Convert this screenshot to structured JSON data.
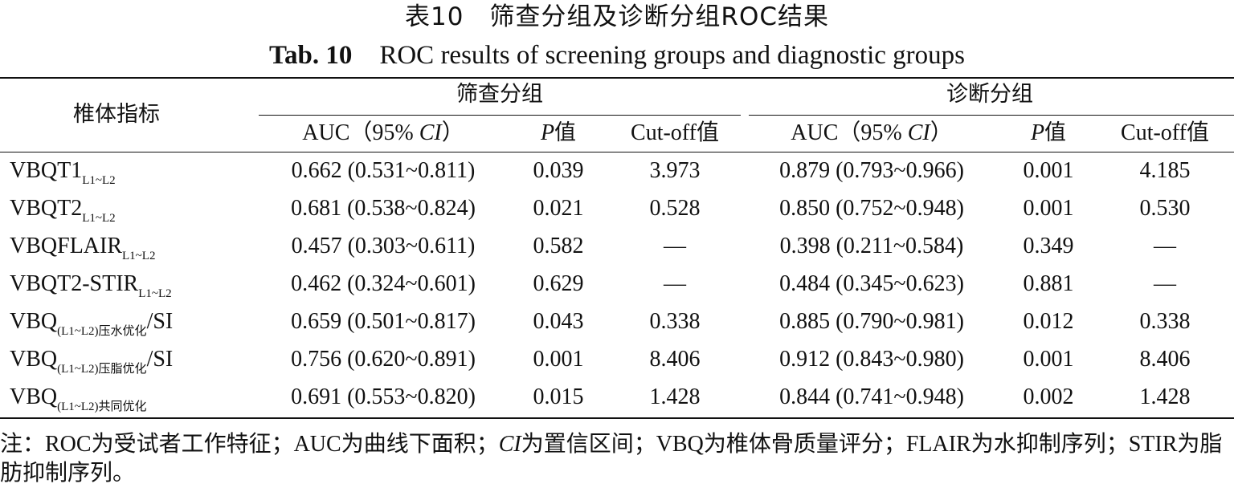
{
  "title": {
    "cn": "表10　筛查分组及诊断分组ROC结果",
    "en_number": "Tab. 10",
    "en_text": "ROC results of screening groups and diagnostic groups"
  },
  "header": {
    "row_label": "椎体指标",
    "group_screening": "筛查分组",
    "group_diagnostic": "诊断分组",
    "auc_prefix": "AUC（95% ",
    "auc_ci": "CI",
    "auc_suffix": "）",
    "p_italic": "P",
    "p_suffix": "值",
    "cutoff": "Cut-off值"
  },
  "rows": [
    {
      "label": "VBQT1",
      "sub": "L1~L2",
      "tail": "",
      "s_auc": "0.662 (0.531~0.811)",
      "s_p": "0.039",
      "s_cut": "3.973",
      "d_auc": "0.879 (0.793~0.966)",
      "d_p": "0.001",
      "d_cut": "4.185"
    },
    {
      "label": "VBQT2",
      "sub": "L1~L2",
      "tail": "",
      "s_auc": "0.681 (0.538~0.824)",
      "s_p": "0.021",
      "s_cut": "0.528",
      "d_auc": "0.850 (0.752~0.948)",
      "d_p": "0.001",
      "d_cut": "0.530"
    },
    {
      "label": "VBQFLAIR",
      "sub": "L1~L2",
      "tail": "",
      "s_auc": "0.457 (0.303~0.611)",
      "s_p": "0.582",
      "s_cut": "—",
      "d_auc": "0.398 (0.211~0.584)",
      "d_p": "0.349",
      "d_cut": "—"
    },
    {
      "label": "VBQT2-STIR",
      "sub": "L1~L2",
      "tail": "",
      "s_auc": "0.462 (0.324~0.601)",
      "s_p": "0.629",
      "s_cut": "—",
      "d_auc": "0.484 (0.345~0.623)",
      "d_p": "0.881",
      "d_cut": "—"
    },
    {
      "label": "VBQ",
      "sub": "(L1~L2)压水优化",
      "tail": "/SI",
      "s_auc": "0.659 (0.501~0.817)",
      "s_p": "0.043",
      "s_cut": "0.338",
      "d_auc": "0.885 (0.790~0.981)",
      "d_p": "0.012",
      "d_cut": "0.338"
    },
    {
      "label": "VBQ",
      "sub": "(L1~L2)压脂优化",
      "tail": "/SI",
      "s_auc": "0.756 (0.620~0.891)",
      "s_p": "0.001",
      "s_cut": "8.406",
      "d_auc": "0.912 (0.843~0.980)",
      "d_p": "0.001",
      "d_cut": "8.406"
    },
    {
      "label": "VBQ",
      "sub": "(L1~L2)共同优化",
      "tail": "",
      "s_auc": "0.691 (0.553~0.820)",
      "s_p": "0.015",
      "s_cut": "1.428",
      "d_auc": "0.844 (0.741~0.948)",
      "d_p": "0.002",
      "d_cut": "1.428"
    }
  ],
  "note": {
    "part1": "注：ROC为受试者工作特征；AUC为曲线下面积；",
    "ci": "CI",
    "part2": "为置信区间；VBQ为椎体骨质量评分；FLAIR为水抑制序列；STIR为脂肪抑制序列。"
  }
}
